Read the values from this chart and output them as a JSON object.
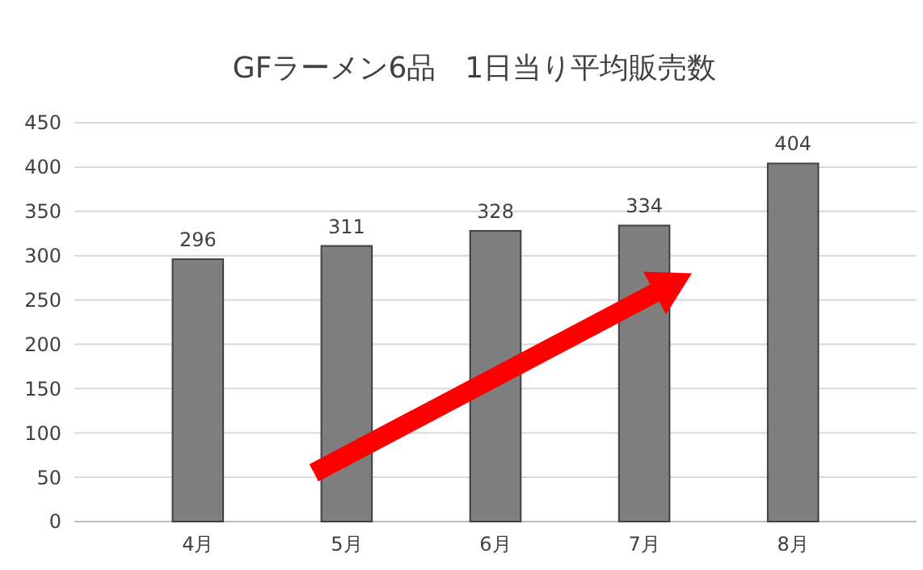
{
  "chart_data": {
    "type": "bar",
    "title": "GFラーメン6品　1日当り平均販売数",
    "categories": [
      "4月",
      "5月",
      "6月",
      "7月",
      "8月"
    ],
    "values": [
      296,
      311,
      328,
      334,
      404
    ],
    "color": "#7f7f7f",
    "ylim": [
      0,
      450
    ],
    "yticks": [
      0,
      50,
      100,
      150,
      200,
      250,
      300,
      350,
      400,
      450
    ],
    "grid": "y",
    "data_labels": true
  }
}
